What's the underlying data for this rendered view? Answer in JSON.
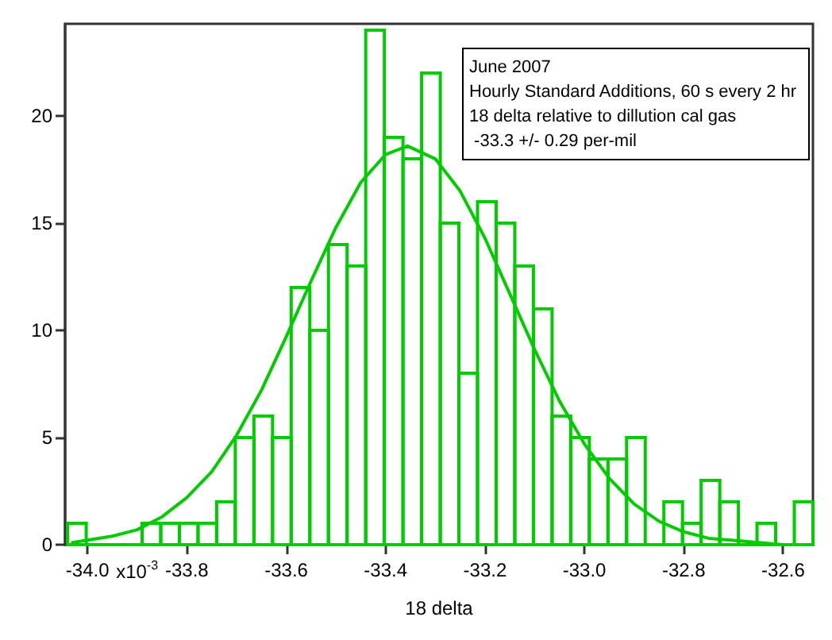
{
  "chart_data": {
    "type": "histogram",
    "xlabel": "18 delta",
    "annotations": [
      "June 2007",
      "Hourly Standard Additions, 60 s every 2 hr",
      "18 delta relative to dillution cal gas",
      " -33.3 +/- 0.29 per-mil",
      {
        "text": "x10$^{-3}$",
        "x": -34.0,
        "y": 0
      }
    ],
    "bins": [
      -34.04,
      -34.0025,
      -33.965,
      -33.9275,
      -33.89,
      -33.8525,
      -33.815,
      -33.7775,
      -33.74,
      -33.7025,
      -33.665,
      -33.6275,
      -33.59,
      -33.5525,
      -33.515,
      -33.4775,
      -33.44,
      -33.4025,
      -33.365,
      -33.3275,
      -33.29,
      -33.2525,
      -33.215,
      -33.1775,
      -33.14,
      -33.1025,
      -33.065,
      -33.0275,
      -32.99,
      -32.9525,
      -32.915,
      -32.8775,
      -32.84,
      -32.8025,
      -32.765,
      -32.7275,
      -32.69,
      -32.6525,
      -32.615,
      -32.5775,
      -32.54
    ],
    "series": [
      {
        "color": "#00cc00",
        "values": [
          1,
          0,
          0,
          0,
          1,
          1,
          1,
          1,
          2,
          5,
          6,
          5,
          12,
          10,
          14,
          13,
          24,
          19,
          18,
          22,
          15,
          8,
          16,
          15,
          13,
          11,
          6,
          5,
          4,
          4,
          5,
          0,
          2,
          1,
          3,
          2,
          0,
          1,
          0,
          2
        ]
      },
      {
        "type": "line",
        "color": "#00cc00",
        "x": [
          -34.03,
          -33.95,
          -33.9,
          -33.85,
          -33.8,
          -33.75,
          -33.7,
          -33.65,
          -33.6,
          -33.55,
          -33.5,
          -33.45,
          -33.4,
          -33.356,
          -33.3,
          -33.25,
          -33.2,
          -33.15,
          -33.1,
          -33.05,
          -33.0,
          -32.95,
          -32.9,
          -32.85,
          -32.8,
          -32.75,
          -32.7,
          -32.6,
          -32.55
        ],
        "values": [
          0.1,
          0.4,
          0.7,
          1.3,
          2.2,
          3.4,
          5.1,
          7.2,
          9.7,
          12.3,
          14.8,
          16.9,
          18.2,
          18.6,
          18.0,
          16.5,
          14.3,
          11.7,
          9.1,
          6.7,
          4.7,
          3.1,
          1.9,
          1.1,
          0.6,
          0.3,
          0.2,
          0.0,
          0.0
        ]
      }
    ],
    "xlim": [
      -34.045,
      -32.54
    ],
    "xticks": [
      {
        "value": -34.0,
        "label": "-34.0"
      },
      -33.8,
      -33.6,
      -33.4,
      -33.2,
      {
        "value": -33.0,
        "label": "-33.0"
      },
      -32.8,
      -32.6
    ],
    "ylim": [
      0,
      24.3
    ],
    "yticks": [
      0,
      5,
      10,
      15,
      20
    ],
    "marker": "none",
    "line_style": "solid"
  }
}
